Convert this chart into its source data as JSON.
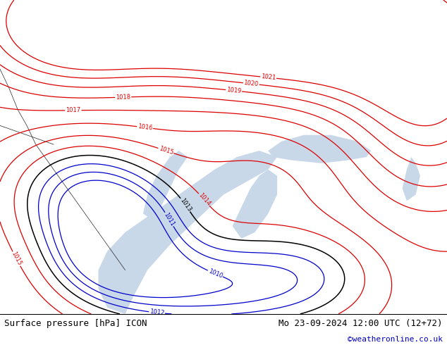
{
  "title_left": "Surface pressure [hPa] ICON",
  "title_right": "Mo 23-09-2024 12:00 UTC (12+72)",
  "credit": "©weatheronline.co.uk",
  "bg_color": "#c8e878",
  "sea_color": "#c8d8e8",
  "contour_red": "#dd0000",
  "contour_blue": "#0000cc",
  "contour_black": "#000000",
  "footer_bg": "#ffffff",
  "footer_text_color": "#000000",
  "footer_credit_color": "#0000bb",
  "figsize": [
    6.34,
    4.9
  ],
  "dpi": 100
}
